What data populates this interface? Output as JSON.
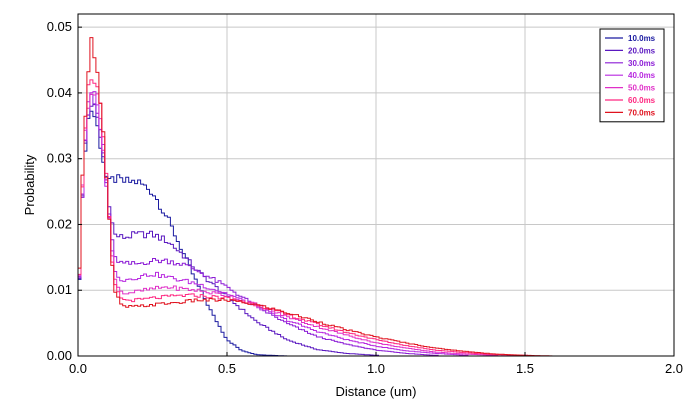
{
  "chart_data": {
    "type": "line",
    "style": "step-histogram",
    "xlabel": "Distance (um)",
    "ylabel": "Probability",
    "xlim": [
      0,
      2.0
    ],
    "ylim": [
      0,
      0.052
    ],
    "xticks": [
      "0.0",
      "0.5",
      "1.0",
      "1.5",
      "2.0"
    ],
    "yticks": [
      "0.00",
      "0.01",
      "0.02",
      "0.03",
      "0.04",
      "0.05"
    ],
    "grid": true,
    "legend_position": "top-right",
    "bin_width": 0.01,
    "series": [
      {
        "name": "10.0ms",
        "color": "#1a1aa0",
        "x": [
          0.0,
          0.02,
          0.04,
          0.06,
          0.08,
          0.1,
          0.12,
          0.15,
          0.2,
          0.25,
          0.3,
          0.35,
          0.4,
          0.45,
          0.5,
          0.55,
          0.6,
          0.7,
          0.8
        ],
        "y": [
          0.006,
          0.03,
          0.038,
          0.036,
          0.031,
          0.026,
          0.027,
          0.0265,
          0.0265,
          0.025,
          0.021,
          0.016,
          0.011,
          0.0065,
          0.0025,
          0.0008,
          0.0002,
          0.0,
          0.0
        ]
      },
      {
        "name": "20.0ms",
        "color": "#5a18c0",
        "x": [
          0.0,
          0.02,
          0.04,
          0.06,
          0.08,
          0.1,
          0.12,
          0.15,
          0.2,
          0.25,
          0.3,
          0.35,
          0.4,
          0.5,
          0.6,
          0.7,
          0.8,
          0.9,
          1.0
        ],
        "y": [
          0.006,
          0.03,
          0.039,
          0.037,
          0.032,
          0.025,
          0.0185,
          0.018,
          0.0185,
          0.0185,
          0.0175,
          0.0155,
          0.013,
          0.009,
          0.0052,
          0.0025,
          0.001,
          0.0004,
          0.0001
        ]
      },
      {
        "name": "30.0ms",
        "color": "#8c1dd6",
        "x": [
          0.0,
          0.02,
          0.04,
          0.06,
          0.08,
          0.1,
          0.12,
          0.15,
          0.2,
          0.25,
          0.3,
          0.35,
          0.4,
          0.5,
          0.6,
          0.7,
          0.8,
          0.9,
          1.0,
          1.1,
          1.2
        ],
        "y": [
          0.006,
          0.031,
          0.039,
          0.038,
          0.033,
          0.024,
          0.015,
          0.014,
          0.014,
          0.0145,
          0.0145,
          0.014,
          0.013,
          0.0105,
          0.0075,
          0.005,
          0.003,
          0.0018,
          0.0009,
          0.0004,
          0.0001
        ]
      },
      {
        "name": "40.0ms",
        "color": "#b828e0",
        "x": [
          0.0,
          0.02,
          0.04,
          0.06,
          0.08,
          0.1,
          0.12,
          0.15,
          0.2,
          0.25,
          0.3,
          0.35,
          0.4,
          0.5,
          0.6,
          0.7,
          0.8,
          0.9,
          1.0,
          1.1,
          1.2,
          1.3
        ],
        "y": [
          0.006,
          0.031,
          0.04,
          0.039,
          0.034,
          0.024,
          0.013,
          0.0115,
          0.012,
          0.0125,
          0.012,
          0.0115,
          0.011,
          0.0095,
          0.0075,
          0.0055,
          0.0038,
          0.0025,
          0.0015,
          0.0008,
          0.0004,
          0.0001
        ]
      },
      {
        "name": "50.0ms",
        "color": "#e030c8",
        "x": [
          0.0,
          0.02,
          0.04,
          0.06,
          0.08,
          0.1,
          0.12,
          0.15,
          0.2,
          0.25,
          0.3,
          0.35,
          0.4,
          0.5,
          0.6,
          0.7,
          0.8,
          0.9,
          1.0,
          1.1,
          1.2,
          1.3,
          1.4
        ],
        "y": [
          0.006,
          0.032,
          0.041,
          0.04,
          0.035,
          0.024,
          0.012,
          0.0095,
          0.0098,
          0.0102,
          0.0105,
          0.0102,
          0.01,
          0.0092,
          0.0078,
          0.006,
          0.0045,
          0.0032,
          0.002,
          0.0012,
          0.0006,
          0.0003,
          0.0001
        ]
      },
      {
        "name": "60.0ms",
        "color": "#ff2880",
        "x": [
          0.0,
          0.02,
          0.04,
          0.06,
          0.08,
          0.1,
          0.12,
          0.15,
          0.2,
          0.25,
          0.3,
          0.35,
          0.4,
          0.5,
          0.6,
          0.7,
          0.8,
          0.9,
          1.0,
          1.1,
          1.2,
          1.3,
          1.4,
          1.5
        ],
        "y": [
          0.006,
          0.033,
          0.043,
          0.042,
          0.036,
          0.024,
          0.011,
          0.0085,
          0.0085,
          0.0088,
          0.009,
          0.0092,
          0.0092,
          0.0088,
          0.0078,
          0.0063,
          0.0049,
          0.0036,
          0.0025,
          0.0016,
          0.0009,
          0.0005,
          0.0002,
          0.0001
        ]
      },
      {
        "name": "70.0ms",
        "color": "#e0121e",
        "x": [
          0.0,
          0.02,
          0.04,
          0.06,
          0.08,
          0.1,
          0.12,
          0.15,
          0.2,
          0.25,
          0.3,
          0.35,
          0.4,
          0.5,
          0.6,
          0.7,
          0.8,
          0.9,
          1.0,
          1.1,
          1.2,
          1.3,
          1.4,
          1.5,
          1.6
        ],
        "y": [
          0.006,
          0.034,
          0.048,
          0.046,
          0.037,
          0.024,
          0.01,
          0.0075,
          0.0075,
          0.0078,
          0.008,
          0.0082,
          0.0085,
          0.0085,
          0.0078,
          0.0066,
          0.0053,
          0.004,
          0.0029,
          0.002,
          0.0012,
          0.0007,
          0.0003,
          0.0001,
          0.0
        ]
      }
    ]
  }
}
